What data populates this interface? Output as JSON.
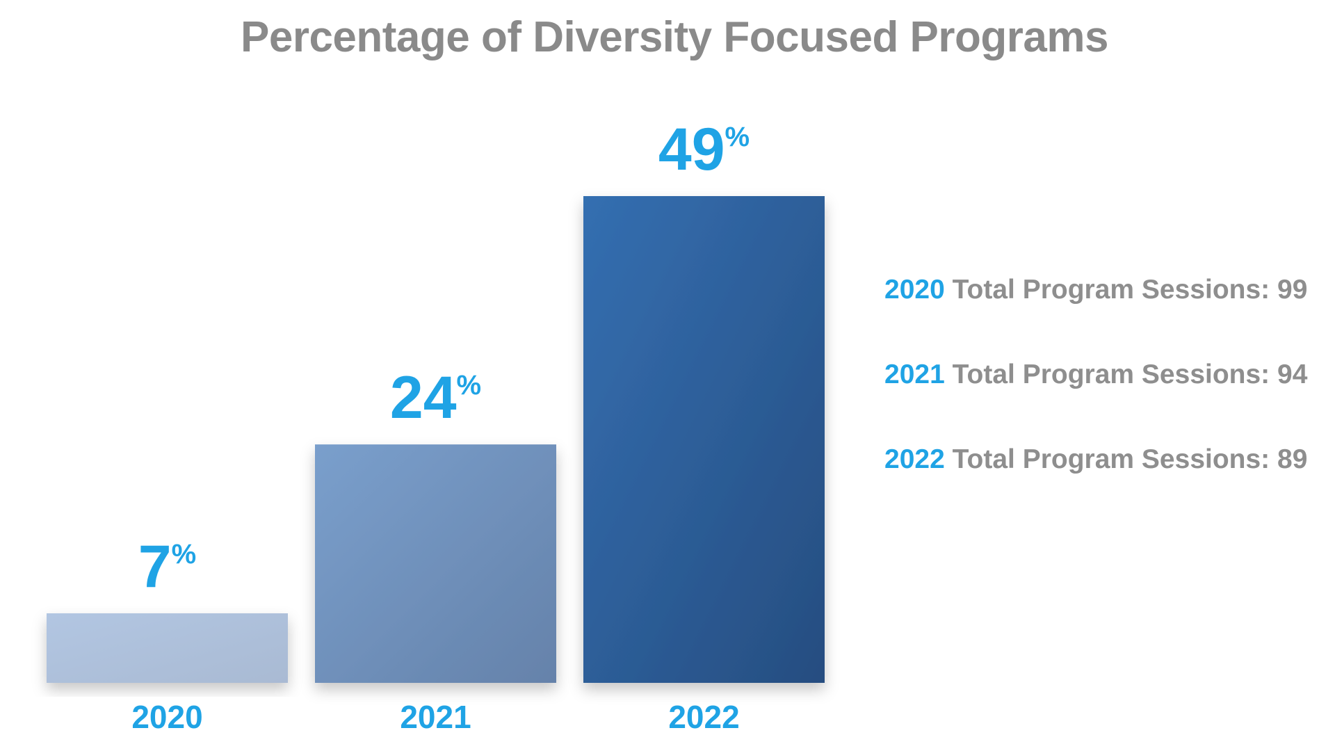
{
  "colors": {
    "title": "#8a8a8a",
    "accent": "#1fa3e5",
    "text_gray": "#8e8e8e",
    "bar_2020_top": "#b2c6e2",
    "bar_2020_bottom": "#a9bad3",
    "bar_2021_top": "#7a9fcc",
    "bar_2021_bottom": "#6582aa",
    "bar_2022_top": "#346fb1",
    "bar_2022_bottom": "#264d80"
  },
  "chart_data": {
    "type": "bar",
    "title": "Percentage of Diversity Focused Programs",
    "categories": [
      "2020",
      "2021",
      "2022"
    ],
    "values": [
      7,
      24,
      49
    ],
    "value_labels": [
      "7",
      "24",
      "49"
    ],
    "value_suffix": "%",
    "xlabel": "",
    "ylabel": "",
    "ylim": [
      0,
      49
    ],
    "grid": false,
    "legend": "none",
    "annotations": [
      {
        "year": "2020",
        "text": "Total Program Sessions: 99"
      },
      {
        "year": "2021",
        "text": "Total Program Sessions: 94"
      },
      {
        "year": "2022",
        "text": "Total Program Sessions: 89"
      }
    ]
  }
}
